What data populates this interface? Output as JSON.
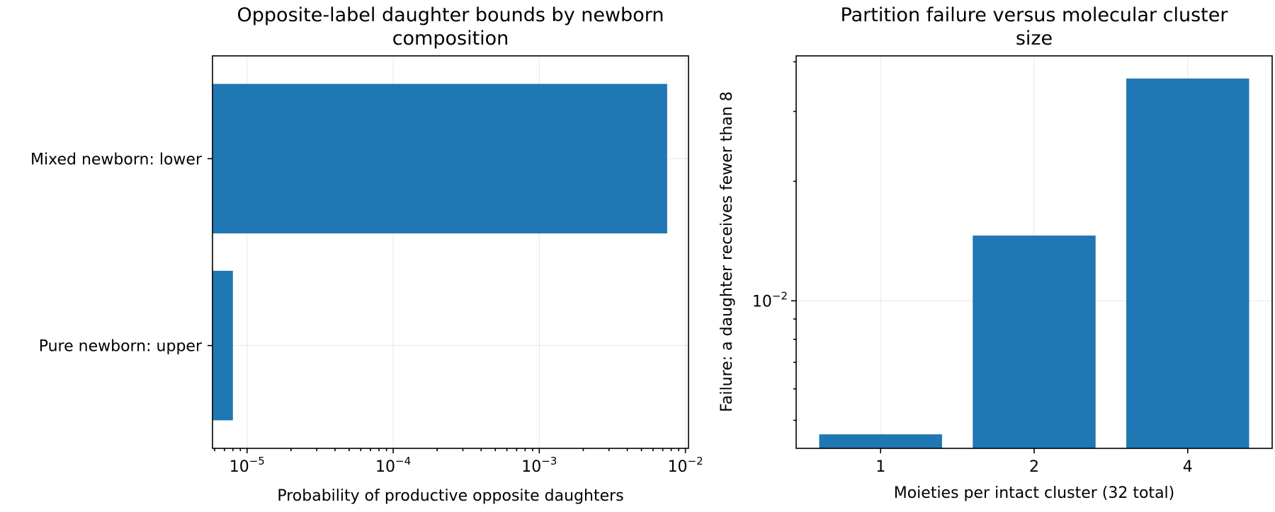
{
  "chart_data": [
    {
      "type": "bar",
      "orientation": "horizontal",
      "title": "Opposite-label daughter bounds by newborn composition",
      "title_lines": [
        "Opposite-label daughter bounds by newborn",
        "composition"
      ],
      "xlabel": "Probability of productive opposite daughters",
      "ylabel": "",
      "x_scale": "log",
      "xlim": [
        5.8e-06,
        0.0105
      ],
      "categories": [
        "Mixed newborn: lower",
        "Pure newborn: upper"
      ],
      "values": [
        0.0075,
        8e-06
      ],
      "x_major_ticks": [
        {
          "value": 1e-05,
          "base": "10",
          "exp": "−5"
        },
        {
          "value": 0.0001,
          "base": "10",
          "exp": "−4"
        },
        {
          "value": 0.001,
          "base": "10",
          "exp": "−3"
        },
        {
          "value": 0.01,
          "base": "10",
          "exp": "−2"
        }
      ],
      "grid": true,
      "color": "#1f77b4"
    },
    {
      "type": "bar",
      "title": "Partition failure versus molecular cluster size",
      "title_lines": [
        "Partition failure versus molecular cluster",
        "size"
      ],
      "xlabel": "Moieties per intact cluster (32 total)",
      "ylabel": "Failure: a daughter receives fewer than 8",
      "y_scale": "log",
      "ylim": [
        0.00425,
        0.0414
      ],
      "categories": [
        "1",
        "2",
        "4"
      ],
      "values": [
        0.00461,
        0.0146,
        0.0363
      ],
      "y_major_ticks": [
        {
          "value": 0.01,
          "base": "10",
          "exp": "−2"
        }
      ],
      "grid": true,
      "color": "#1f77b4"
    }
  ]
}
